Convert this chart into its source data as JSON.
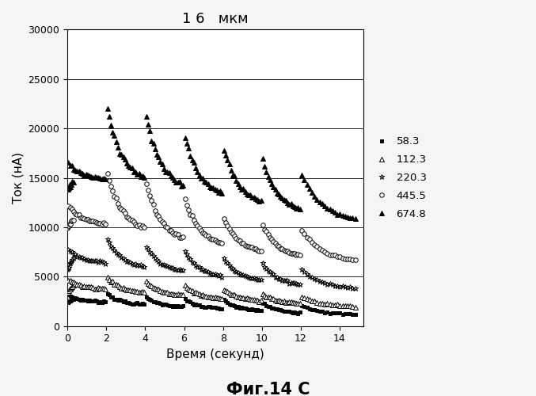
{
  "title": "1 6   мкм",
  "xlabel": "Время (секунд)",
  "ylabel": "Ток (нА)",
  "caption": "Фиг.14 С",
  "xlim": [
    0,
    15.2
  ],
  "ylim": [
    0,
    30000
  ],
  "yticks": [
    0,
    5000,
    10000,
    15000,
    20000,
    25000,
    30000
  ],
  "xticks": [
    0,
    2,
    4,
    6,
    8,
    10,
    12,
    14
  ],
  "background_color": "#f5f5f5",
  "plot_bg_color": "white",
  "series": [
    {
      "label": "58.3",
      "marker": "s",
      "filled": true,
      "ms": 3,
      "pulse_starts": [
        0.0,
        2.0,
        4.0,
        6.0,
        8.0,
        10.0,
        12.0
      ],
      "peak_vals": [
        3100,
        3300,
        2900,
        2700,
        2600,
        2300,
        2100
      ],
      "end_vals": [
        2400,
        2100,
        1900,
        1700,
        1500,
        1300,
        1100
      ],
      "init_val": 2500
    },
    {
      "label": "112.3",
      "marker": "^",
      "filled": false,
      "ms": 4,
      "pulse_starts": [
        0.0,
        2.0,
        4.0,
        6.0,
        8.0,
        10.0,
        12.0
      ],
      "peak_vals": [
        4700,
        4900,
        4500,
        4100,
        3700,
        3300,
        3000
      ],
      "end_vals": [
        3700,
        3300,
        3000,
        2700,
        2500,
        2200,
        1900
      ],
      "init_val": 3500
    },
    {
      "label": "220.3",
      "marker": "*",
      "filled": false,
      "ms": 5,
      "pulse_starts": [
        0.0,
        2.0,
        4.0,
        6.0,
        8.0,
        10.0,
        12.0
      ],
      "peak_vals": [
        7800,
        8800,
        8100,
        7500,
        6900,
        6300,
        5700
      ],
      "end_vals": [
        6300,
        5800,
        5400,
        4900,
        4500,
        4100,
        3700
      ],
      "init_val": 6000
    },
    {
      "label": "445.5",
      "marker": "o",
      "filled": false,
      "ms": 4,
      "pulse_starts": [
        0.0,
        2.0,
        4.0,
        6.0,
        8.0,
        10.0,
        12.0
      ],
      "peak_vals": [
        12200,
        15500,
        14500,
        12800,
        10800,
        10200,
        9700
      ],
      "end_vals": [
        10200,
        9500,
        8500,
        8000,
        7400,
        6900,
        6400
      ],
      "init_val": 10500
    },
    {
      "label": "674.8",
      "marker": "^",
      "filled": true,
      "ms": 5,
      "pulse_starts": [
        0.0,
        2.0,
        4.0,
        6.0,
        8.0,
        10.0,
        12.0
      ],
      "peak_vals": [
        16500,
        22000,
        21200,
        19200,
        18000,
        16800,
        15300
      ],
      "end_vals": [
        14800,
        14500,
        13700,
        13000,
        12200,
        11500,
        10500
      ],
      "init_val": 14500
    }
  ]
}
